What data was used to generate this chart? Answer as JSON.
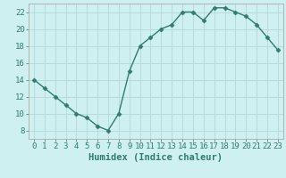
{
  "x": [
    0,
    1,
    2,
    3,
    4,
    5,
    6,
    7,
    8,
    9,
    10,
    11,
    12,
    13,
    14,
    15,
    16,
    17,
    18,
    19,
    20,
    21,
    22,
    23
  ],
  "y": [
    14,
    13,
    12,
    11,
    10,
    9.5,
    8.5,
    8,
    10,
    15,
    18,
    19,
    20,
    20.5,
    22,
    22,
    21,
    22.5,
    22.5,
    22,
    21.5,
    20.5,
    19,
    17.5
  ],
  "line_color": "#2e7d6e",
  "marker": "D",
  "marker_size": 2.5,
  "bg_color": "#cff0f0",
  "grid_color": "#b8dada",
  "xlabel": "Humidex (Indice chaleur)",
  "xlim": [
    -0.5,
    23.5
  ],
  "ylim": [
    7,
    23
  ],
  "yticks": [
    8,
    10,
    12,
    14,
    16,
    18,
    20,
    22
  ],
  "xtick_labels": [
    "0",
    "1",
    "2",
    "3",
    "4",
    "5",
    "6",
    "7",
    "8",
    "9",
    "10",
    "11",
    "12",
    "13",
    "14",
    "15",
    "16",
    "17",
    "18",
    "19",
    "20",
    "21",
    "22",
    "23"
  ],
  "xlabel_fontsize": 7.5,
  "tick_fontsize": 6.5,
  "line_width": 1.0
}
